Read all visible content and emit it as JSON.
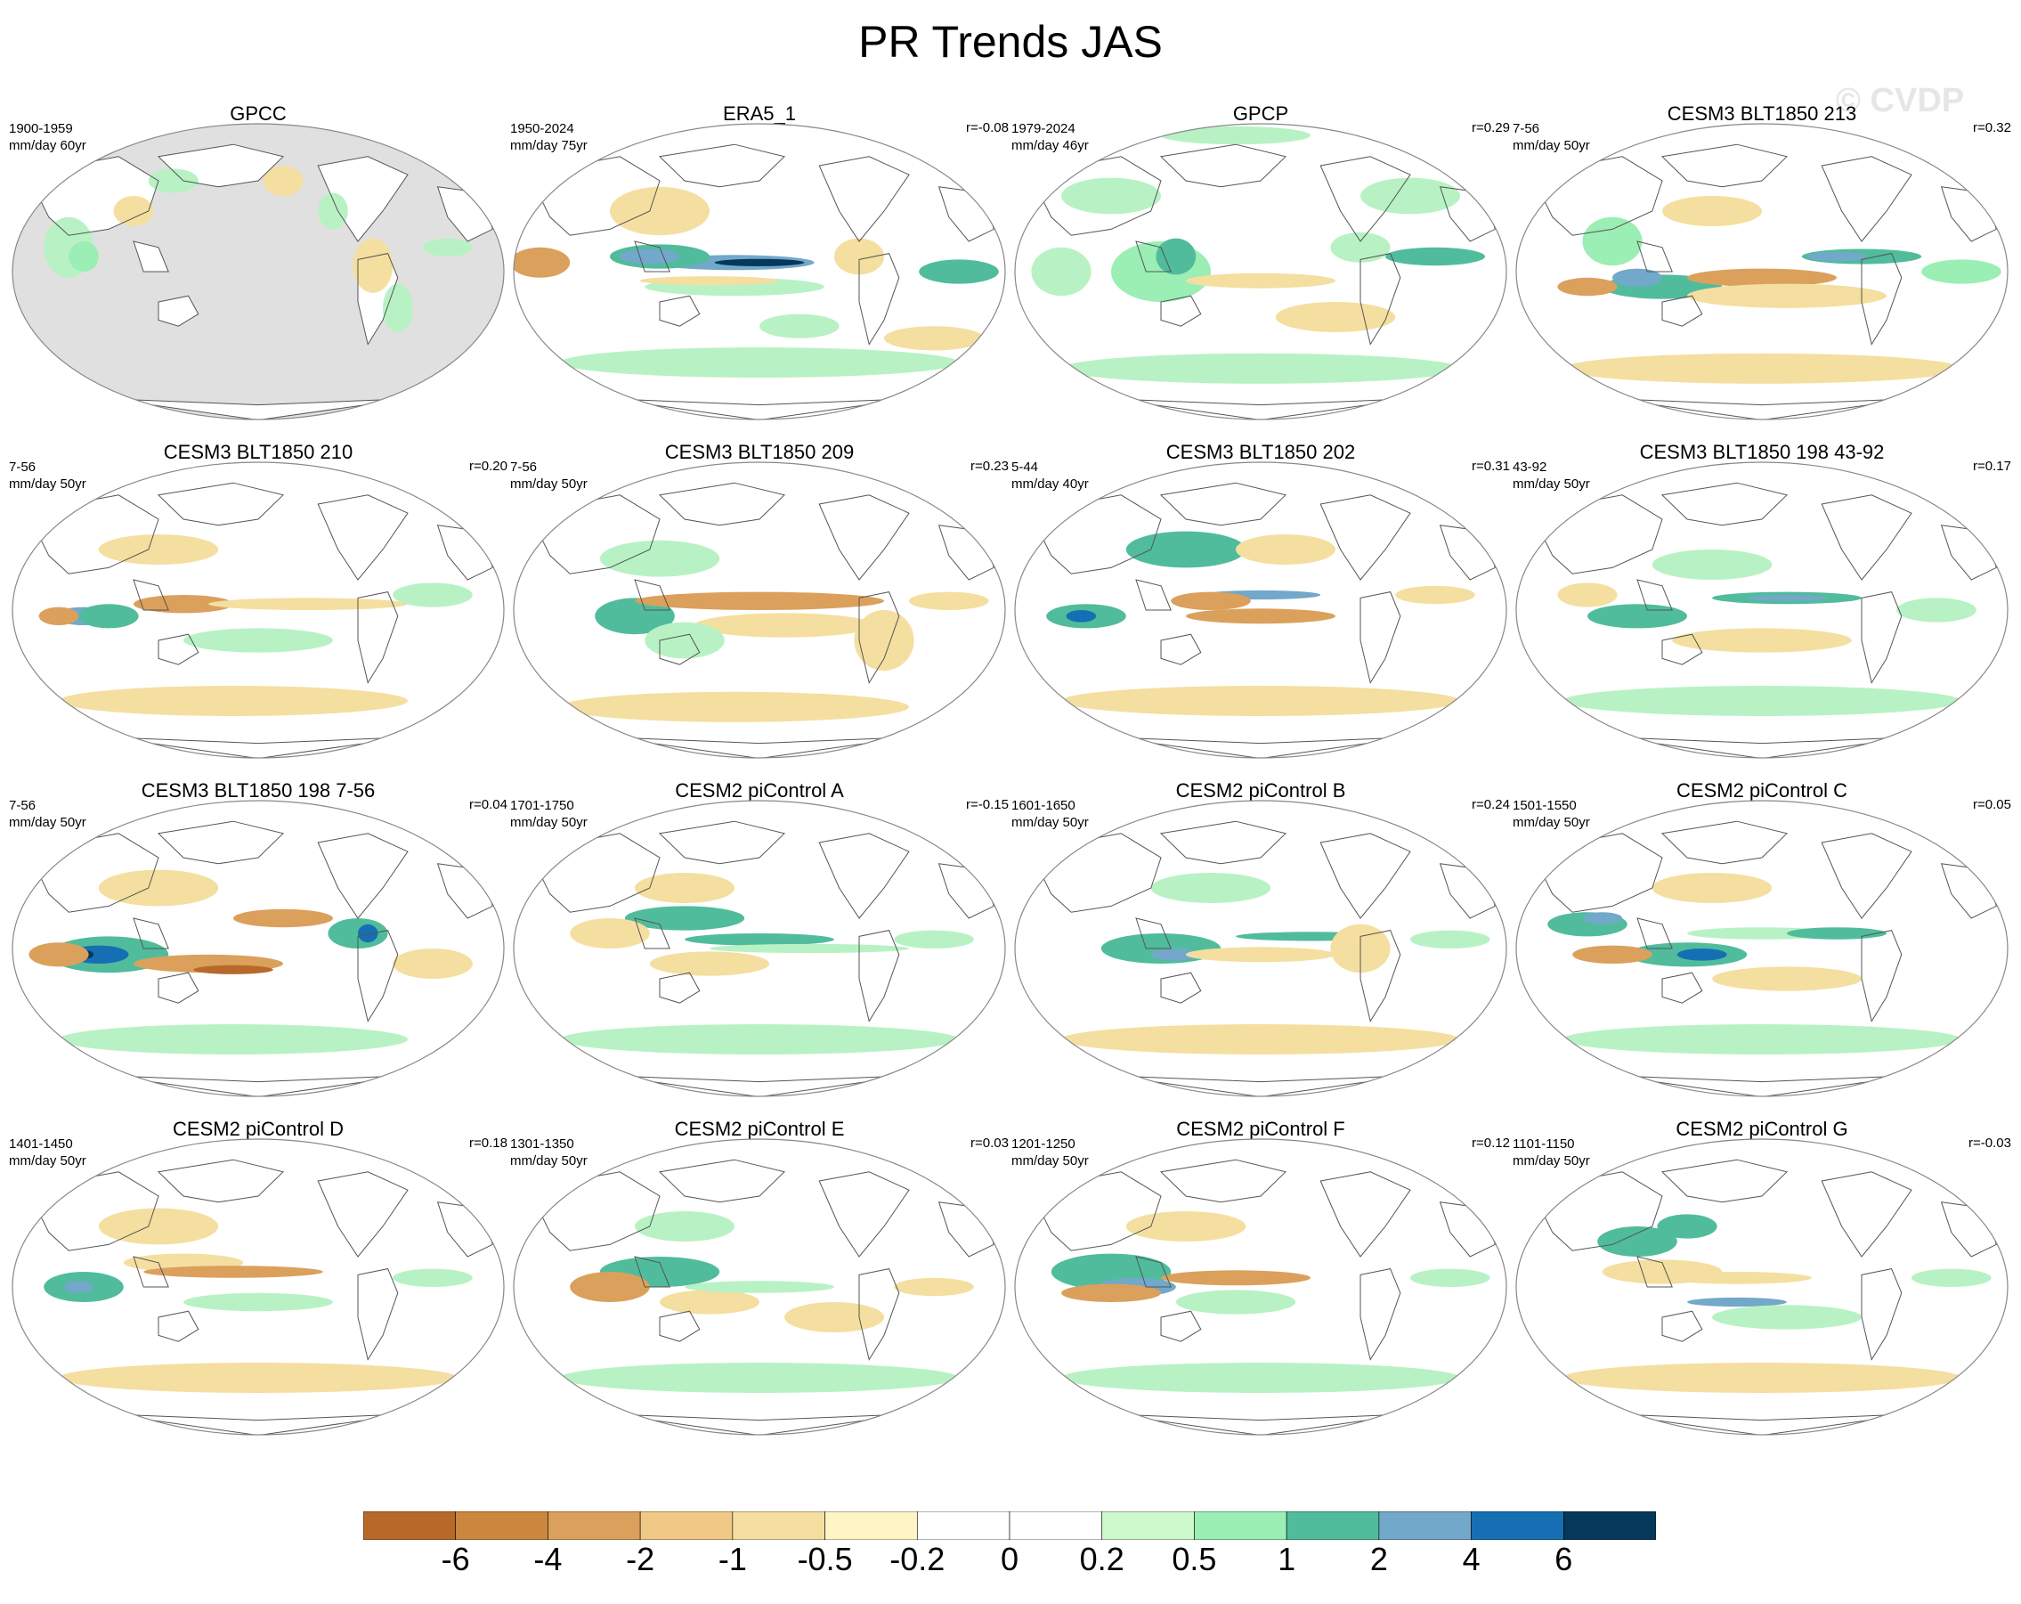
{
  "title": "PR Trends JAS",
  "watermark": "© CVDP",
  "colors": {
    "land": "#e0e0e0",
    "ocean": "#ffffff",
    "coast": "#555555"
  },
  "panels": [
    {
      "title": "GPCC",
      "period": "1900-1959",
      "units": "mm/day 60yr",
      "corr": "",
      "masked": true,
      "blobs": [
        [
          0.12,
          0.42,
          0.05,
          0.1,
          "green1"
        ],
        [
          0.15,
          0.45,
          0.03,
          0.05,
          "green2"
        ],
        [
          0.25,
          0.3,
          0.04,
          0.05,
          "tan1"
        ],
        [
          0.33,
          0.2,
          0.05,
          0.04,
          "green1"
        ],
        [
          0.55,
          0.2,
          0.04,
          0.05,
          "tan1"
        ],
        [
          0.65,
          0.3,
          0.03,
          0.06,
          "green1"
        ],
        [
          0.73,
          0.48,
          0.04,
          0.09,
          "tan1"
        ],
        [
          0.88,
          0.42,
          0.05,
          0.03,
          "green1"
        ],
        [
          0.78,
          0.62,
          0.03,
          0.08,
          "green1"
        ]
      ]
    },
    {
      "title": "ERA5_1",
      "period": "1950-2024",
      "units": "mm/day 75yr",
      "corr": "r=-0.08",
      "masked": false,
      "blobs": [
        [
          0.45,
          0.47,
          0.16,
          0.025,
          "blue1"
        ],
        [
          0.5,
          0.47,
          0.09,
          0.012,
          "blue3"
        ],
        [
          0.3,
          0.45,
          0.1,
          0.04,
          "teal"
        ],
        [
          0.28,
          0.45,
          0.06,
          0.025,
          "blue1"
        ],
        [
          0.06,
          0.47,
          0.06,
          0.05,
          "tan2"
        ],
        [
          0.45,
          0.55,
          0.18,
          0.03,
          "green1"
        ],
        [
          0.4,
          0.53,
          0.14,
          0.015,
          "tan1"
        ],
        [
          0.5,
          0.8,
          0.4,
          0.05,
          "green1"
        ],
        [
          0.9,
          0.5,
          0.08,
          0.04,
          "teal"
        ],
        [
          0.7,
          0.45,
          0.05,
          0.06,
          "tan1"
        ],
        [
          0.3,
          0.3,
          0.1,
          0.08,
          "tan1"
        ],
        [
          0.85,
          0.72,
          0.1,
          0.04,
          "tan1"
        ],
        [
          0.58,
          0.68,
          0.08,
          0.04,
          "green1"
        ]
      ]
    },
    {
      "title": "GPCP",
      "period": "1979-2024",
      "units": "mm/day 46yr",
      "corr": "r=0.29",
      "masked": false,
      "blobs": [
        [
          0.3,
          0.5,
          0.1,
          0.1,
          "green2"
        ],
        [
          0.33,
          0.45,
          0.04,
          0.06,
          "teal"
        ],
        [
          0.1,
          0.5,
          0.06,
          0.08,
          "green1"
        ],
        [
          0.5,
          0.53,
          0.15,
          0.025,
          "tan1"
        ],
        [
          0.65,
          0.65,
          0.12,
          0.05,
          "tan1"
        ],
        [
          0.85,
          0.45,
          0.1,
          0.03,
          "teal"
        ],
        [
          0.7,
          0.42,
          0.06,
          0.05,
          "green1"
        ],
        [
          0.5,
          0.82,
          0.4,
          0.05,
          "green1"
        ],
        [
          0.2,
          0.25,
          0.1,
          0.06,
          "green1"
        ],
        [
          0.8,
          0.25,
          0.1,
          0.06,
          "green1"
        ],
        [
          0.45,
          0.05,
          0.15,
          0.03,
          "green1"
        ]
      ]
    },
    {
      "title": "CESM3 BLT1850 213",
      "period": "7-56",
      "units": "mm/day 50yr",
      "corr": "r=0.32",
      "masked": false,
      "blobs": [
        [
          0.3,
          0.55,
          0.12,
          0.04,
          "teal"
        ],
        [
          0.25,
          0.52,
          0.05,
          0.03,
          "blue1"
        ],
        [
          0.5,
          0.52,
          0.15,
          0.03,
          "tan2"
        ],
        [
          0.55,
          0.58,
          0.2,
          0.04,
          "tan1"
        ],
        [
          0.7,
          0.45,
          0.12,
          0.025,
          "teal"
        ],
        [
          0.65,
          0.45,
          0.06,
          0.015,
          "blue1"
        ],
        [
          0.4,
          0.3,
          0.1,
          0.05,
          "tan1"
        ],
        [
          0.2,
          0.4,
          0.06,
          0.08,
          "green2"
        ],
        [
          0.15,
          0.55,
          0.06,
          0.03,
          "tan2"
        ],
        [
          0.5,
          0.82,
          0.4,
          0.05,
          "tan1"
        ],
        [
          0.9,
          0.5,
          0.08,
          0.04,
          "green2"
        ]
      ]
    },
    {
      "title": "CESM3 BLT1850 210",
      "period": "7-56",
      "units": "mm/day 50yr",
      "corr": "r=0.20",
      "masked": false,
      "blobs": [
        [
          0.15,
          0.52,
          0.06,
          0.03,
          "blue1"
        ],
        [
          0.2,
          0.52,
          0.06,
          0.04,
          "teal"
        ],
        [
          0.35,
          0.48,
          0.1,
          0.03,
          "tan2"
        ],
        [
          0.6,
          0.48,
          0.2,
          0.02,
          "tan1"
        ],
        [
          0.3,
          0.3,
          0.12,
          0.05,
          "tan1"
        ],
        [
          0.5,
          0.6,
          0.15,
          0.04,
          "green1"
        ],
        [
          0.45,
          0.8,
          0.35,
          0.05,
          "tan1"
        ],
        [
          0.85,
          0.45,
          0.08,
          0.04,
          "green1"
        ],
        [
          0.1,
          0.52,
          0.04,
          0.03,
          "tan2"
        ]
      ]
    },
    {
      "title": "CESM3 BLT1850 209",
      "period": "7-56",
      "units": "mm/day 50yr",
      "corr": "r=0.23",
      "masked": false,
      "blobs": [
        [
          0.25,
          0.52,
          0.08,
          0.06,
          "teal"
        ],
        [
          0.5,
          0.47,
          0.25,
          0.03,
          "tan2"
        ],
        [
          0.55,
          0.55,
          0.18,
          0.04,
          "tan1"
        ],
        [
          0.3,
          0.33,
          0.12,
          0.06,
          "green1"
        ],
        [
          0.75,
          0.6,
          0.06,
          0.1,
          "tan1"
        ],
        [
          0.45,
          0.82,
          0.35,
          0.05,
          "tan1"
        ],
        [
          0.88,
          0.47,
          0.08,
          0.03,
          "tan1"
        ],
        [
          0.35,
          0.6,
          0.08,
          0.06,
          "green1"
        ]
      ]
    },
    {
      "title": "CESM3 BLT1850 202",
      "period": "5-44",
      "units": "mm/day 40yr",
      "corr": "r=0.31",
      "masked": false,
      "blobs": [
        [
          0.15,
          0.52,
          0.08,
          0.04,
          "teal"
        ],
        [
          0.14,
          0.52,
          0.03,
          0.02,
          "blue2"
        ],
        [
          0.5,
          0.45,
          0.12,
          0.015,
          "blue1"
        ],
        [
          0.4,
          0.47,
          0.08,
          0.03,
          "tan2"
        ],
        [
          0.5,
          0.52,
          0.15,
          0.025,
          "tan2"
        ],
        [
          0.35,
          0.3,
          0.12,
          0.06,
          "teal"
        ],
        [
          0.55,
          0.3,
          0.1,
          0.05,
          "tan1"
        ],
        [
          0.5,
          0.8,
          0.4,
          0.05,
          "tan1"
        ],
        [
          0.85,
          0.45,
          0.08,
          0.03,
          "tan1"
        ]
      ]
    },
    {
      "title": "CESM3 BLT1850 198 43-92",
      "period": "43-92",
      "units": "mm/day 50yr",
      "corr": "r=0.17",
      "masked": false,
      "blobs": [
        [
          0.55,
          0.46,
          0.15,
          0.02,
          "teal"
        ],
        [
          0.55,
          0.46,
          0.08,
          0.01,
          "blue1"
        ],
        [
          0.25,
          0.52,
          0.1,
          0.04,
          "teal"
        ],
        [
          0.4,
          0.35,
          0.12,
          0.05,
          "green1"
        ],
        [
          0.5,
          0.6,
          0.18,
          0.04,
          "tan1"
        ],
        [
          0.15,
          0.45,
          0.06,
          0.04,
          "tan1"
        ],
        [
          0.5,
          0.8,
          0.4,
          0.05,
          "green1"
        ],
        [
          0.85,
          0.5,
          0.08,
          0.04,
          "green1"
        ]
      ]
    },
    {
      "title": "CESM3 BLT1850 198 7-56",
      "period": "7-56",
      "units": "mm/day 50yr",
      "corr": "r=0.04",
      "masked": false,
      "blobs": [
        [
          0.2,
          0.52,
          0.12,
          0.06,
          "teal"
        ],
        [
          0.18,
          0.52,
          0.06,
          0.03,
          "blue2"
        ],
        [
          0.15,
          0.52,
          0.02,
          0.015,
          "blue3"
        ],
        [
          0.4,
          0.55,
          0.15,
          0.03,
          "tan2"
        ],
        [
          0.45,
          0.57,
          0.08,
          0.015,
          "tan3"
        ],
        [
          0.55,
          0.4,
          0.1,
          0.03,
          "tan2"
        ],
        [
          0.7,
          0.45,
          0.06,
          0.05,
          "teal"
        ],
        [
          0.72,
          0.45,
          0.02,
          0.03,
          "blue2"
        ],
        [
          0.1,
          0.52,
          0.06,
          0.04,
          "tan2"
        ],
        [
          0.3,
          0.3,
          0.12,
          0.06,
          "tan1"
        ],
        [
          0.45,
          0.8,
          0.35,
          0.05,
          "green1"
        ],
        [
          0.85,
          0.55,
          0.08,
          0.05,
          "tan1"
        ]
      ]
    },
    {
      "title": "CESM2 piControl A",
      "period": "1701-1750",
      "units": "mm/day 50yr",
      "corr": "r=-0.15",
      "masked": false,
      "blobs": [
        [
          0.35,
          0.4,
          0.12,
          0.04,
          "teal"
        ],
        [
          0.2,
          0.45,
          0.08,
          0.05,
          "tan1"
        ],
        [
          0.5,
          0.47,
          0.15,
          0.02,
          "teal"
        ],
        [
          0.6,
          0.5,
          0.2,
          0.015,
          "green1"
        ],
        [
          0.4,
          0.55,
          0.12,
          0.04,
          "tan1"
        ],
        [
          0.35,
          0.3,
          0.1,
          0.05,
          "tan1"
        ],
        [
          0.5,
          0.8,
          0.4,
          0.05,
          "green1"
        ],
        [
          0.85,
          0.47,
          0.08,
          0.03,
          "green1"
        ]
      ]
    },
    {
      "title": "CESM2 piControl B",
      "period": "1601-1650",
      "units": "mm/day 50yr",
      "corr": "r=0.24",
      "masked": false,
      "blobs": [
        [
          0.3,
          0.5,
          0.12,
          0.05,
          "teal"
        ],
        [
          0.33,
          0.52,
          0.05,
          0.02,
          "blue1"
        ],
        [
          0.5,
          0.52,
          0.15,
          0.025,
          "tan1"
        ],
        [
          0.6,
          0.46,
          0.15,
          0.015,
          "teal"
        ],
        [
          0.7,
          0.5,
          0.06,
          0.08,
          "tan1"
        ],
        [
          0.4,
          0.3,
          0.12,
          0.05,
          "green1"
        ],
        [
          0.5,
          0.8,
          0.4,
          0.05,
          "tan1"
        ],
        [
          0.88,
          0.47,
          0.08,
          0.03,
          "green1"
        ]
      ]
    },
    {
      "title": "CESM2 piControl C",
      "period": "1501-1550",
      "units": "mm/day 50yr",
      "corr": "r=0.05",
      "masked": false,
      "blobs": [
        [
          0.15,
          0.42,
          0.08,
          0.04,
          "teal"
        ],
        [
          0.18,
          0.4,
          0.04,
          0.02,
          "blue1"
        ],
        [
          0.35,
          0.52,
          0.12,
          0.04,
          "teal"
        ],
        [
          0.38,
          0.52,
          0.05,
          0.02,
          "blue2"
        ],
        [
          0.2,
          0.52,
          0.08,
          0.03,
          "tan2"
        ],
        [
          0.5,
          0.45,
          0.15,
          0.02,
          "green1"
        ],
        [
          0.65,
          0.45,
          0.1,
          0.02,
          "teal"
        ],
        [
          0.4,
          0.3,
          0.12,
          0.05,
          "tan1"
        ],
        [
          0.5,
          0.8,
          0.4,
          0.05,
          "green1"
        ],
        [
          0.55,
          0.6,
          0.15,
          0.04,
          "tan1"
        ]
      ]
    },
    {
      "title": "CESM2 piControl D",
      "period": "1401-1450",
      "units": "mm/day 50yr",
      "corr": "r=0.18",
      "masked": false,
      "blobs": [
        [
          0.15,
          0.5,
          0.08,
          0.05,
          "teal"
        ],
        [
          0.14,
          0.5,
          0.03,
          0.02,
          "blue1"
        ],
        [
          0.35,
          0.42,
          0.12,
          0.03,
          "tan1"
        ],
        [
          0.45,
          0.45,
          0.18,
          0.02,
          "tan2"
        ],
        [
          0.5,
          0.55,
          0.15,
          0.03,
          "green1"
        ],
        [
          0.3,
          0.3,
          0.12,
          0.06,
          "tan1"
        ],
        [
          0.5,
          0.8,
          0.4,
          0.05,
          "tan1"
        ],
        [
          0.85,
          0.47,
          0.08,
          0.03,
          "green1"
        ]
      ]
    },
    {
      "title": "CESM2 piControl E",
      "period": "1301-1350",
      "units": "mm/day 50yr",
      "corr": "r=0.03",
      "masked": false,
      "blobs": [
        [
          0.3,
          0.45,
          0.12,
          0.05,
          "teal"
        ],
        [
          0.2,
          0.5,
          0.08,
          0.05,
          "tan2"
        ],
        [
          0.4,
          0.55,
          0.1,
          0.04,
          "tan1"
        ],
        [
          0.5,
          0.5,
          0.15,
          0.02,
          "green1"
        ],
        [
          0.65,
          0.6,
          0.1,
          0.05,
          "tan1"
        ],
        [
          0.35,
          0.3,
          0.1,
          0.05,
          "green1"
        ],
        [
          0.5,
          0.8,
          0.4,
          0.05,
          "green1"
        ],
        [
          0.85,
          0.5,
          0.08,
          0.03,
          "tan1"
        ]
      ]
    },
    {
      "title": "CESM2 piControl F",
      "period": "1201-1250",
      "units": "mm/day 50yr",
      "corr": "r=0.12",
      "masked": false,
      "blobs": [
        [
          0.2,
          0.45,
          0.12,
          0.06,
          "teal"
        ],
        [
          0.25,
          0.5,
          0.08,
          0.03,
          "blue1"
        ],
        [
          0.2,
          0.52,
          0.1,
          0.03,
          "tan2"
        ],
        [
          0.45,
          0.47,
          0.15,
          0.025,
          "tan2"
        ],
        [
          0.45,
          0.55,
          0.12,
          0.04,
          "green1"
        ],
        [
          0.35,
          0.3,
          0.12,
          0.05,
          "tan1"
        ],
        [
          0.5,
          0.8,
          0.4,
          0.05,
          "green1"
        ],
        [
          0.88,
          0.47,
          0.08,
          0.03,
          "green1"
        ]
      ]
    },
    {
      "title": "CESM2 piControl G",
      "period": "1101-1150",
      "units": "mm/day 50yr",
      "corr": "r=-0.03",
      "masked": false,
      "blobs": [
        [
          0.25,
          0.35,
          0.08,
          0.05,
          "teal"
        ],
        [
          0.35,
          0.3,
          0.06,
          0.04,
          "teal"
        ],
        [
          0.3,
          0.45,
          0.12,
          0.04,
          "tan1"
        ],
        [
          0.45,
          0.47,
          0.15,
          0.02,
          "tan1"
        ],
        [
          0.45,
          0.55,
          0.1,
          0.015,
          "blue1"
        ],
        [
          0.55,
          0.6,
          0.15,
          0.04,
          "green1"
        ],
        [
          0.5,
          0.8,
          0.4,
          0.05,
          "tan1"
        ],
        [
          0.88,
          0.47,
          0.08,
          0.03,
          "green1"
        ]
      ]
    }
  ],
  "colorbar": {
    "colors": [
      "#b8692a",
      "#cc863d",
      "#dba05c",
      "#f0c987",
      "#f4dfa0",
      "#fff5c4",
      "#ffffff",
      "#ffffff",
      "#cdf9cd",
      "#9beeb4",
      "#50bc9c",
      "#72a8c9",
      "#166fb2",
      "#05385a"
    ],
    "labels": [
      "-6",
      "-4",
      "-2",
      "-1",
      "-0.5",
      "-0.2",
      "0",
      "0.2",
      "0.5",
      "1",
      "2",
      "4",
      "6"
    ]
  },
  "palette": {
    "tan3": "#b8692a",
    "tan2": "#dba05c",
    "tan1": "#f4dfa0",
    "green1": "#b8f2c4",
    "green2": "#9beeb4",
    "teal": "#50bc9c",
    "blue1": "#72a8c9",
    "blue2": "#166fb2",
    "blue3": "#05385a"
  }
}
